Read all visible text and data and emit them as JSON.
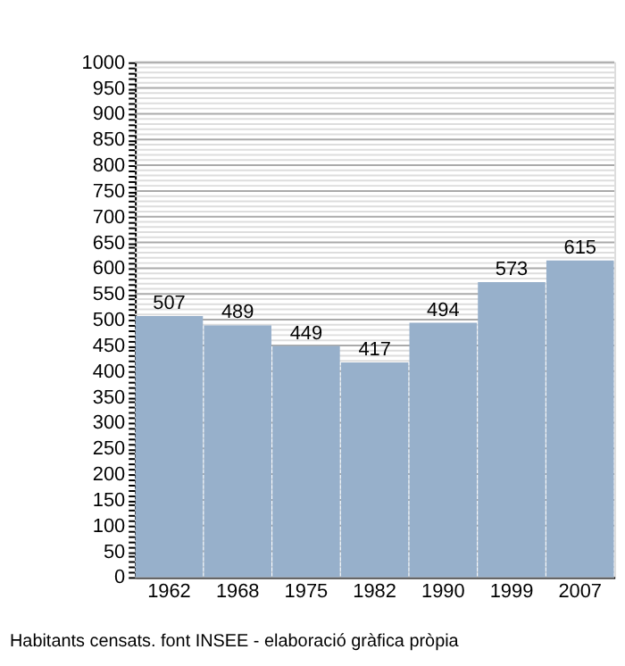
{
  "chart_data": {
    "type": "bar",
    "categories": [
      "1962",
      "1968",
      "1975",
      "1982",
      "1990",
      "1999",
      "2007"
    ],
    "values": [
      507,
      489,
      449,
      417,
      494,
      573,
      615
    ],
    "color": "#97b0cb",
    "data_labels": true,
    "ylim": [
      0,
      1000
    ],
    "yticks": [
      0,
      {
        "value": 10,
        "label": null
      },
      {
        "value": 20,
        "label": null
      },
      {
        "value": 30,
        "label": null
      },
      {
        "value": 40,
        "label": null
      },
      50,
      {
        "value": 60,
        "label": null
      },
      {
        "value": 70,
        "label": null
      },
      {
        "value": 80,
        "label": null
      },
      {
        "value": 90,
        "label": null
      },
      100,
      {
        "value": 110,
        "label": null
      },
      {
        "value": 120,
        "label": null
      },
      {
        "value": 130,
        "label": null
      },
      {
        "value": 140,
        "label": null
      },
      150,
      {
        "value": 160,
        "label": null
      },
      {
        "value": 170,
        "label": null
      },
      {
        "value": 180,
        "label": null
      },
      {
        "value": 190,
        "label": null
      },
      200,
      {
        "value": 210,
        "label": null
      },
      {
        "value": 220,
        "label": null
      },
      {
        "value": 230,
        "label": null
      },
      {
        "value": 240,
        "label": null
      },
      250,
      {
        "value": 260,
        "label": null
      },
      {
        "value": 270,
        "label": null
      },
      {
        "value": 280,
        "label": null
      },
      {
        "value": 290,
        "label": null
      },
      300,
      {
        "value": 310,
        "label": null
      },
      {
        "value": 320,
        "label": null
      },
      {
        "value": 330,
        "label": null
      },
      {
        "value": 340,
        "label": null
      },
      350,
      {
        "value": 360,
        "label": null
      },
      {
        "value": 370,
        "label": null
      },
      {
        "value": 380,
        "label": null
      },
      {
        "value": 390,
        "label": null
      },
      400,
      {
        "value": 410,
        "label": null
      },
      {
        "value": 420,
        "label": null
      },
      {
        "value": 430,
        "label": null
      },
      {
        "value": 440,
        "label": null
      },
      450,
      {
        "value": 460,
        "label": null
      },
      {
        "value": 470,
        "label": null
      },
      {
        "value": 480,
        "label": null
      },
      {
        "value": 490,
        "label": null
      },
      500,
      {
        "value": 510,
        "label": null
      },
      {
        "value": 520,
        "label": null
      },
      {
        "value": 530,
        "label": null
      },
      {
        "value": 540,
        "label": null
      },
      550,
      {
        "value": 560,
        "label": null
      },
      {
        "value": 570,
        "label": null
      },
      {
        "value": 580,
        "label": null
      },
      {
        "value": 590,
        "label": null
      },
      600,
      {
        "value": 610,
        "label": null
      },
      {
        "value": 620,
        "label": null
      },
      {
        "value": 630,
        "label": null
      },
      {
        "value": 640,
        "label": null
      },
      650,
      {
        "value": 660,
        "label": null
      },
      {
        "value": 670,
        "label": null
      },
      {
        "value": 680,
        "label": null
      },
      {
        "value": 690,
        "label": null
      },
      700,
      {
        "value": 710,
        "label": null
      },
      {
        "value": 720,
        "label": null
      },
      {
        "value": 730,
        "label": null
      },
      {
        "value": 740,
        "label": null
      },
      750,
      {
        "value": 760,
        "label": null
      },
      {
        "value": 770,
        "label": null
      },
      {
        "value": 780,
        "label": null
      },
      {
        "value": 790,
        "label": null
      },
      800,
      {
        "value": 810,
        "label": null
      },
      {
        "value": 820,
        "label": null
      },
      {
        "value": 830,
        "label": null
      },
      {
        "value": 840,
        "label": null
      },
      850,
      {
        "value": 860,
        "label": null
      },
      {
        "value": 870,
        "label": null
      },
      {
        "value": 880,
        "label": null
      },
      {
        "value": 890,
        "label": null
      },
      900,
      {
        "value": 910,
        "label": null
      },
      {
        "value": 920,
        "label": null
      },
      {
        "value": 930,
        "label": null
      },
      {
        "value": 940,
        "label": null
      },
      950,
      {
        "value": 960,
        "label": null
      },
      {
        "value": 970,
        "label": null
      },
      {
        "value": 980,
        "label": null
      },
      {
        "value": 990,
        "label": null
      },
      1000
    ],
    "grid": true,
    "annotations": [
      "Habitants censats. font INSEE - elaboració gràfica pròpia"
    ]
  }
}
